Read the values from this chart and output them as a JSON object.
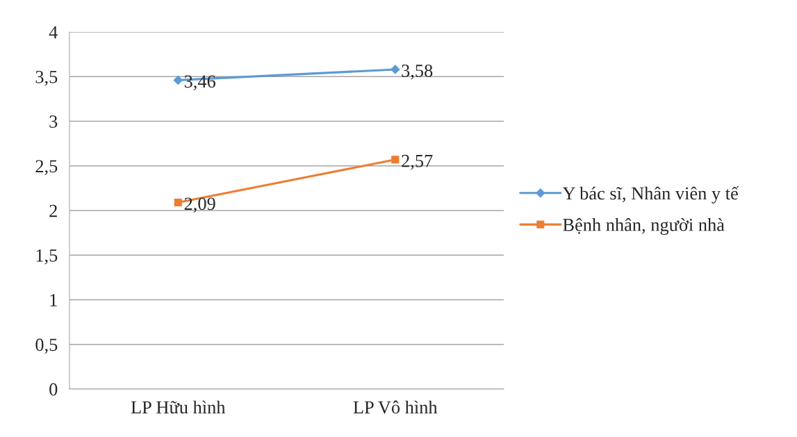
{
  "chart_data": {
    "type": "line",
    "categories": [
      "LP Hữu hình",
      "LP Vô hình"
    ],
    "series": [
      {
        "name": "Y bác sĩ, Nhân viên y tế",
        "color": "#5b9bd5",
        "marker": "diamond",
        "values": [
          3.46,
          3.58
        ],
        "value_labels": [
          "3,46",
          "3,58"
        ]
      },
      {
        "name": "Bệnh nhân, người nhà",
        "color": "#ed7d31",
        "marker": "square",
        "values": [
          2.09,
          2.57
        ],
        "value_labels": [
          "2,09",
          "2,57"
        ]
      }
    ],
    "ylim": [
      0,
      4
    ],
    "yticks": [
      0,
      {
        "value": 0.5,
        "label": "0,5"
      },
      1,
      {
        "value": 1.5,
        "label": "1,5"
      },
      2,
      {
        "value": 2.5,
        "label": "2,5"
      },
      3,
      {
        "value": 3.5,
        "label": "3,5"
      },
      4
    ],
    "grid": "y",
    "legend": "right"
  }
}
